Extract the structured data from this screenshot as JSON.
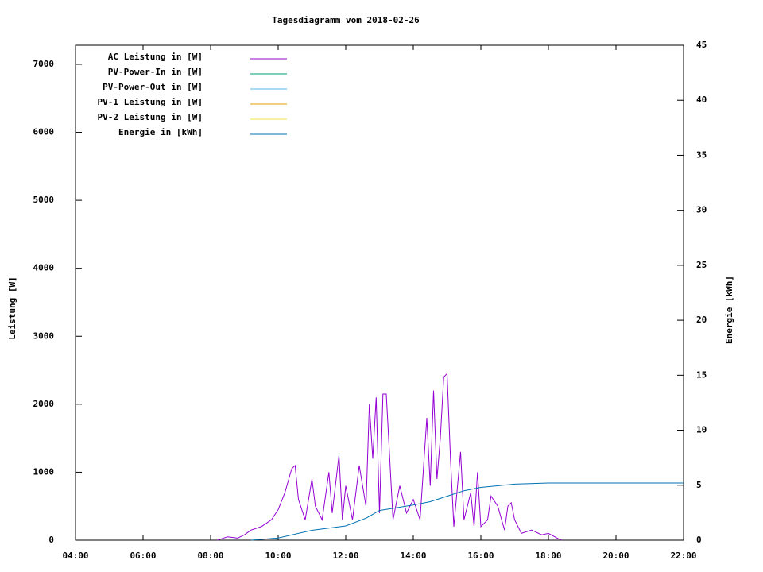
{
  "chart_data": {
    "type": "line",
    "title": "Tagesdiagramm vom 2018-02-26",
    "ylabel": "Leistung [W]",
    "y2label": "Energie [kWh]",
    "xlim": [
      4,
      22
    ],
    "xticks": [
      {
        "value": 4,
        "label": "04:00"
      },
      {
        "value": 6,
        "label": "06:00"
      },
      {
        "value": 8,
        "label": "08:00"
      },
      {
        "value": 10,
        "label": "10:00"
      },
      {
        "value": 12,
        "label": "12:00"
      },
      {
        "value": 14,
        "label": "14:00"
      },
      {
        "value": 16,
        "label": "16:00"
      },
      {
        "value": 18,
        "label": "18:00"
      },
      {
        "value": 20,
        "label": "20:00"
      },
      {
        "value": 22,
        "label": "22:00"
      }
    ],
    "ylim": [
      0,
      7280
    ],
    "yticks": [
      0,
      1000,
      2000,
      3000,
      4000,
      5000,
      6000,
      7000
    ],
    "y2lim": [
      0,
      45
    ],
    "y2ticks": [
      0,
      5,
      10,
      15,
      20,
      25,
      30,
      35,
      40,
      45
    ],
    "legend": "upper-left",
    "series": [
      {
        "name": "AC Leistung in [W]",
        "color": "#9400d3",
        "x": [
          8.2,
          8.5,
          8.8,
          9.0,
          9.2,
          9.5,
          9.8,
          10.0,
          10.2,
          10.4,
          10.5,
          10.6,
          10.8,
          11.0,
          11.1,
          11.3,
          11.5,
          11.6,
          11.8,
          11.9,
          12.0,
          12.2,
          12.4,
          12.6,
          12.7,
          12.8,
          12.9,
          13.0,
          13.1,
          13.2,
          13.4,
          13.6,
          13.8,
          14.0,
          14.2,
          14.4,
          14.5,
          14.6,
          14.7,
          14.8,
          14.9,
          15.0,
          15.1,
          15.2,
          15.4,
          15.5,
          15.7,
          15.8,
          15.9,
          16.0,
          16.2,
          16.3,
          16.5,
          16.7,
          16.8,
          16.9,
          17.0,
          17.2,
          17.5,
          17.8,
          18.0,
          18.3,
          18.4
        ],
        "values": [
          0,
          50,
          30,
          80,
          150,
          200,
          300,
          450,
          700,
          1050,
          1100,
          600,
          300,
          900,
          500,
          300,
          1000,
          400,
          1250,
          300,
          800,
          300,
          1100,
          500,
          2000,
          1200,
          2100,
          400,
          2150,
          2150,
          300,
          800,
          400,
          600,
          300,
          1800,
          800,
          2200,
          900,
          1500,
          2400,
          2450,
          1200,
          200,
          1300,
          300,
          700,
          200,
          1000,
          200,
          300,
          650,
          500,
          150,
          500,
          550,
          300,
          100,
          150,
          80,
          100,
          20,
          0
        ]
      },
      {
        "name": "PV-Power-In in [W]",
        "color": "#009e73",
        "x": [],
        "values": []
      },
      {
        "name": "PV-Power-Out in [W]",
        "color": "#56b4e9",
        "x": [],
        "values": []
      },
      {
        "name": "PV-1 Leistung in [W]",
        "color": "#e69f00",
        "x": [],
        "values": []
      },
      {
        "name": "PV-2 Leistung in [W]",
        "color": "#f0e442",
        "x": [],
        "values": []
      },
      {
        "name": "Energie in [kWh]",
        "color": "#0072b2",
        "axis": "y2",
        "x": [
          9.2,
          10.0,
          11.0,
          12.0,
          12.6,
          13.0,
          14.0,
          14.5,
          15.0,
          15.5,
          16.0,
          17.0,
          18.0,
          22.0
        ],
        "values": [
          0,
          0.2,
          0.9,
          1.3,
          2.0,
          2.7,
          3.2,
          3.5,
          4.0,
          4.5,
          4.8,
          5.1,
          5.2,
          5.2
        ]
      }
    ]
  }
}
